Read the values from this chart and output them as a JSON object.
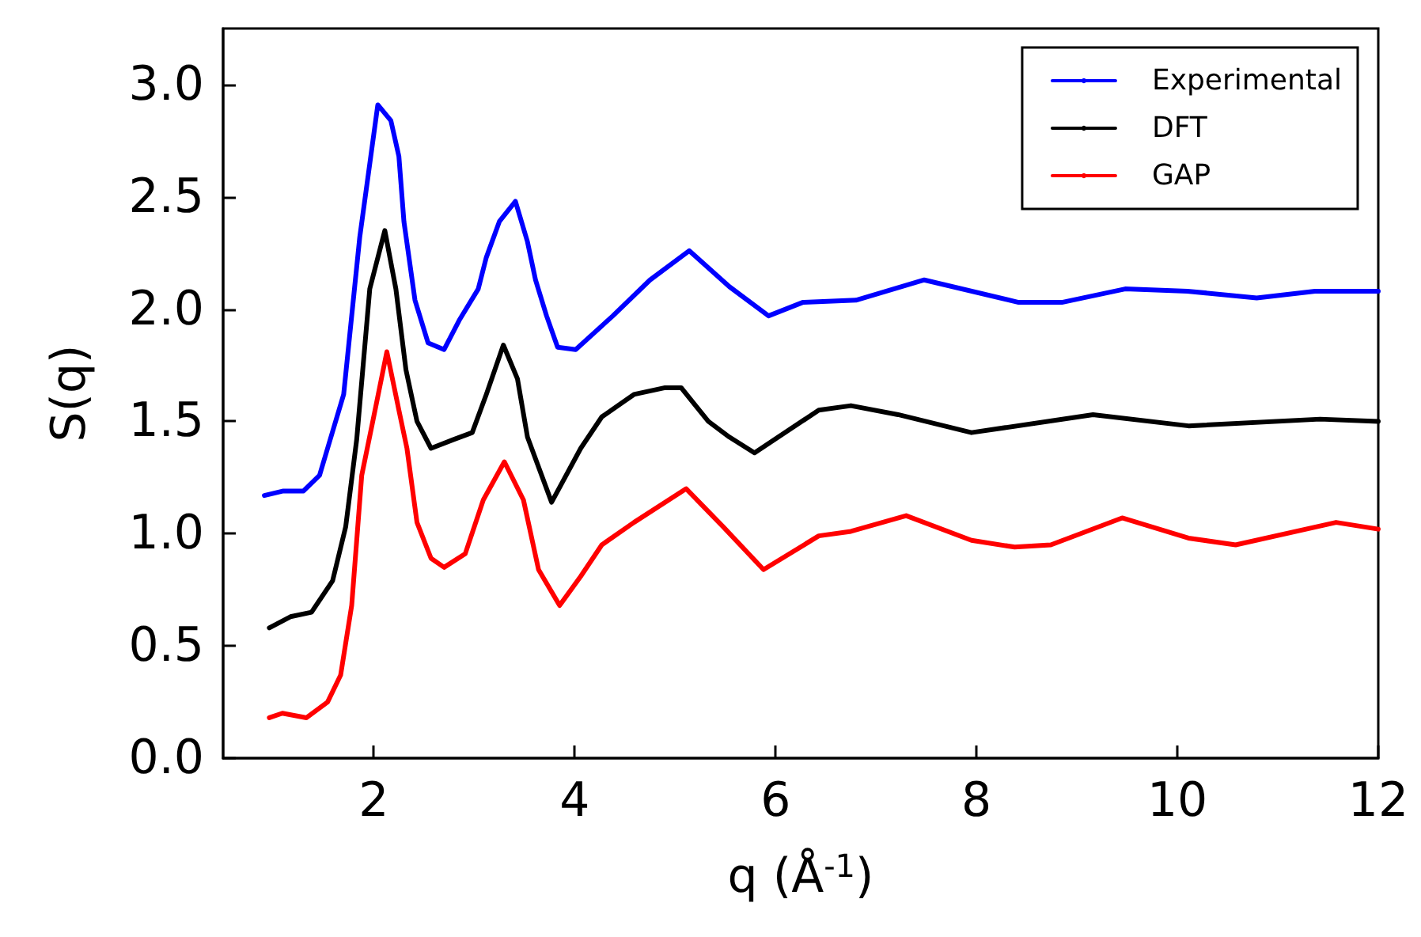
{
  "chart_data": {
    "type": "line",
    "xlabel": "q (Å$^{-1}$)",
    "ylabel": "S(q)",
    "xlim": [
      0.5,
      12
    ],
    "xticks": [
      2,
      4,
      6,
      8,
      10,
      12
    ],
    "ylim": [
      0,
      3.25
    ],
    "yticks": [
      {
        "value": 0,
        "label": "0.0"
      },
      {
        "value": 0.5,
        "label": "0.5"
      },
      {
        "value": 1,
        "label": "1.0"
      },
      {
        "value": 1.5,
        "label": "1.5"
      },
      {
        "value": 2,
        "label": "2.0"
      },
      {
        "value": 2.5,
        "label": "2.5"
      },
      {
        "value": 3,
        "label": "3.0"
      }
    ],
    "grid": false,
    "legend": "top right",
    "line_style": "solid",
    "marker": "none",
    "series": [
      {
        "name": "Experimental",
        "color": "#0000ff",
        "x": [
          0.91,
          1.1,
          1.3,
          1.46,
          1.54,
          1.7,
          1.86,
          2.04,
          2.17,
          2.25,
          2.3,
          2.41,
          2.54,
          2.7,
          2.85,
          3.04,
          3.12,
          3.25,
          3.41,
          3.53,
          3.61,
          3.72,
          3.83,
          4.01,
          4.38,
          4.75,
          5.14,
          5.54,
          5.93,
          6.27,
          6.8,
          7.48,
          8.42,
          8.85,
          9.48,
          10.1,
          10.79,
          11.37,
          12
        ],
        "values": [
          1.17,
          1.19,
          1.19,
          1.26,
          1.38,
          1.62,
          2.32,
          2.91,
          2.84,
          2.68,
          2.39,
          2.04,
          1.85,
          1.82,
          1.95,
          2.09,
          2.23,
          2.39,
          2.48,
          2.3,
          2.13,
          1.97,
          1.83,
          1.82,
          1.97,
          2.13,
          2.26,
          2.1,
          1.97,
          2.03,
          2.04,
          2.13,
          2.03,
          2.03,
          2.09,
          2.08,
          2.05,
          2.08,
          2.08
        ]
      },
      {
        "name": "DFT",
        "color": "#000000",
        "x": [
          0.96,
          1.17,
          1.38,
          1.59,
          1.72,
          1.83,
          1.96,
          2.11,
          2.22,
          2.32,
          2.43,
          2.57,
          2.8,
          2.98,
          3.12,
          3.29,
          3.43,
          3.53,
          3.77,
          4.06,
          4.27,
          4.59,
          4.9,
          5.06,
          5.33,
          5.54,
          5.79,
          6.43,
          6.75,
          7.22,
          7.95,
          9.16,
          10.11,
          11.42,
          12
        ],
        "values": [
          0.58,
          0.63,
          0.65,
          0.79,
          1.03,
          1.42,
          2.09,
          2.35,
          2.09,
          1.73,
          1.5,
          1.38,
          1.42,
          1.45,
          1.62,
          1.84,
          1.69,
          1.43,
          1.14,
          1.38,
          1.52,
          1.62,
          1.65,
          1.65,
          1.5,
          1.43,
          1.36,
          1.55,
          1.57,
          1.53,
          1.45,
          1.53,
          1.48,
          1.51,
          1.5
        ]
      },
      {
        "name": "GAP",
        "color": "#ff0000",
        "x": [
          0.96,
          1.09,
          1.33,
          1.54,
          1.67,
          1.78,
          1.88,
          1.99,
          2.13,
          2.25,
          2.33,
          2.43,
          2.57,
          2.7,
          2.91,
          3.09,
          3.3,
          3.49,
          3.64,
          3.85,
          4.06,
          4.27,
          4.59,
          5.11,
          5.48,
          5.88,
          6.43,
          6.75,
          7.3,
          7.95,
          8.38,
          8.74,
          9.45,
          10.11,
          10.58,
          11.58,
          12
        ],
        "values": [
          0.18,
          0.2,
          0.18,
          0.25,
          0.37,
          0.68,
          1.26,
          1.5,
          1.81,
          1.55,
          1.38,
          1.05,
          0.89,
          0.85,
          0.91,
          1.15,
          1.32,
          1.15,
          0.84,
          0.68,
          0.81,
          0.95,
          1.05,
          1.2,
          1.03,
          0.84,
          0.99,
          1.01,
          1.08,
          0.97,
          0.94,
          0.95,
          1.07,
          0.98,
          0.95,
          1.05,
          1.02
        ]
      }
    ]
  }
}
